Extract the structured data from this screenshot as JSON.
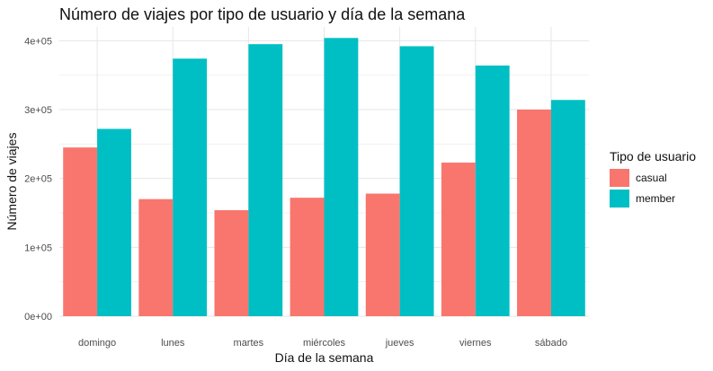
{
  "chart_data": {
    "type": "bar",
    "title": "Número de viajes por tipo de usuario y día de la semana",
    "xlabel": "Día de la semana",
    "ylabel": "Número de viajes",
    "categories": [
      "domingo",
      "lunes",
      "martes",
      "miércoles",
      "jueves",
      "viernes",
      "sábado"
    ],
    "series": [
      {
        "name": "casual",
        "color": "#F8766D",
        "values": [
          245000,
          170000,
          154000,
          172000,
          178000,
          223000,
          300000
        ]
      },
      {
        "name": "member",
        "color": "#00BFC4",
        "values": [
          272000,
          374000,
          395000,
          404000,
          392000,
          364000,
          314000
        ]
      }
    ],
    "ylim": [
      0,
      420000
    ],
    "yticks": [
      0,
      100000,
      200000,
      300000,
      400000
    ],
    "ytick_labels": [
      "0e+00",
      "1e+05",
      "2e+05",
      "3e+05",
      "4e+05"
    ],
    "grid": true,
    "legend": {
      "title": "Tipo de usuario",
      "position": "right"
    }
  }
}
